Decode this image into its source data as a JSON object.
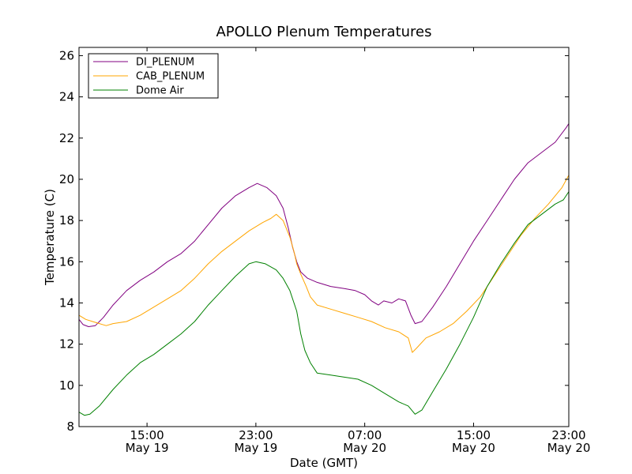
{
  "chart_data": {
    "type": "line",
    "title": "APOLLO Plenum Temperatures",
    "xlabel": "Date (GMT)",
    "ylabel": "Temperature (C)",
    "xlim": [
      10.0,
      46.0
    ],
    "ylim": [
      8,
      26.4
    ],
    "x_unit": "hours since 00:00 May 19 (GMT)",
    "yticks": [
      8,
      10,
      12,
      14,
      16,
      18,
      20,
      22,
      24,
      26
    ],
    "xticks": [
      {
        "x": 15,
        "time": "15:00",
        "date": "May 19"
      },
      {
        "x": 23,
        "time": "23:00",
        "date": "May 19"
      },
      {
        "x": 31,
        "time": "07:00",
        "date": "May 20"
      },
      {
        "x": 39,
        "time": "15:00",
        "date": "May 20"
      },
      {
        "x": 47,
        "time": "23:00",
        "date": "May 20"
      }
    ],
    "legend_position": "top-left",
    "series": [
      {
        "name": "DI_PLENUM",
        "color": "#800080",
        "points": [
          [
            10.0,
            13.2
          ],
          [
            10.3,
            12.95
          ],
          [
            10.7,
            12.85
          ],
          [
            11.2,
            12.9
          ],
          [
            11.8,
            13.3
          ],
          [
            12.5,
            13.9
          ],
          [
            13.5,
            14.6
          ],
          [
            14.5,
            15.1
          ],
          [
            15.5,
            15.5
          ],
          [
            16.5,
            16.0
          ],
          [
            17.5,
            16.4
          ],
          [
            18.5,
            17.0
          ],
          [
            19.5,
            17.8
          ],
          [
            20.5,
            18.6
          ],
          [
            21.5,
            19.2
          ],
          [
            22.5,
            19.6
          ],
          [
            23.1,
            19.8
          ],
          [
            23.8,
            19.6
          ],
          [
            24.5,
            19.2
          ],
          [
            25.0,
            18.6
          ],
          [
            25.4,
            17.6
          ],
          [
            25.7,
            16.7
          ],
          [
            26.0,
            16.0
          ],
          [
            26.3,
            15.5
          ],
          [
            26.8,
            15.2
          ],
          [
            27.5,
            15.0
          ],
          [
            28.5,
            14.8
          ],
          [
            29.5,
            14.7
          ],
          [
            30.3,
            14.6
          ],
          [
            31.0,
            14.4
          ],
          [
            31.5,
            14.1
          ],
          [
            32.0,
            13.9
          ],
          [
            32.4,
            14.1
          ],
          [
            33.0,
            14.0
          ],
          [
            33.5,
            14.2
          ],
          [
            34.0,
            14.1
          ],
          [
            34.4,
            13.4
          ],
          [
            34.7,
            13.0
          ],
          [
            35.2,
            13.1
          ],
          [
            36.0,
            13.8
          ],
          [
            37.0,
            14.8
          ],
          [
            38.0,
            15.9
          ],
          [
            39.0,
            17.0
          ],
          [
            40.0,
            18.0
          ],
          [
            41.0,
            19.0
          ],
          [
            42.0,
            20.0
          ],
          [
            43.0,
            20.8
          ],
          [
            44.0,
            21.3
          ],
          [
            45.0,
            21.8
          ],
          [
            45.8,
            22.5
          ],
          [
            46.0,
            22.7
          ]
        ]
      },
      {
        "name": "CAB_PLENUM",
        "color": "#FFA500",
        "points": [
          [
            10.0,
            13.4
          ],
          [
            10.5,
            13.2
          ],
          [
            11.0,
            13.1
          ],
          [
            11.5,
            13.0
          ],
          [
            12.0,
            12.9
          ],
          [
            12.5,
            13.0
          ],
          [
            13.5,
            13.1
          ],
          [
            14.5,
            13.4
          ],
          [
            15.5,
            13.8
          ],
          [
            16.5,
            14.2
          ],
          [
            17.5,
            14.6
          ],
          [
            18.5,
            15.2
          ],
          [
            19.5,
            15.9
          ],
          [
            20.5,
            16.5
          ],
          [
            21.5,
            17.0
          ],
          [
            22.5,
            17.5
          ],
          [
            23.5,
            17.9
          ],
          [
            24.1,
            18.1
          ],
          [
            24.5,
            18.3
          ],
          [
            25.0,
            18.0
          ],
          [
            25.5,
            17.2
          ],
          [
            25.8,
            16.5
          ],
          [
            26.0,
            15.9
          ],
          [
            26.3,
            15.4
          ],
          [
            26.7,
            14.8
          ],
          [
            27.0,
            14.3
          ],
          [
            27.5,
            13.9
          ],
          [
            28.5,
            13.7
          ],
          [
            29.5,
            13.5
          ],
          [
            30.5,
            13.3
          ],
          [
            31.5,
            13.1
          ],
          [
            32.5,
            12.8
          ],
          [
            33.5,
            12.6
          ],
          [
            34.2,
            12.3
          ],
          [
            34.5,
            11.6
          ],
          [
            34.8,
            11.8
          ],
          [
            35.5,
            12.3
          ],
          [
            36.5,
            12.6
          ],
          [
            37.5,
            13.0
          ],
          [
            38.5,
            13.6
          ],
          [
            39.5,
            14.3
          ],
          [
            40.5,
            15.3
          ],
          [
            41.5,
            16.3
          ],
          [
            42.5,
            17.3
          ],
          [
            43.5,
            18.1
          ],
          [
            44.5,
            18.8
          ],
          [
            45.5,
            19.6
          ],
          [
            46.0,
            20.2
          ]
        ]
      },
      {
        "name": "Dome Air",
        "color": "#008000",
        "points": [
          [
            10.0,
            8.7
          ],
          [
            10.4,
            8.55
          ],
          [
            10.8,
            8.6
          ],
          [
            11.5,
            9.0
          ],
          [
            12.5,
            9.8
          ],
          [
            13.5,
            10.5
          ],
          [
            14.5,
            11.1
          ],
          [
            15.5,
            11.5
          ],
          [
            16.5,
            12.0
          ],
          [
            17.5,
            12.5
          ],
          [
            18.5,
            13.1
          ],
          [
            19.5,
            13.9
          ],
          [
            20.5,
            14.6
          ],
          [
            21.5,
            15.3
          ],
          [
            22.5,
            15.9
          ],
          [
            23.0,
            16.0
          ],
          [
            23.7,
            15.9
          ],
          [
            24.5,
            15.6
          ],
          [
            25.0,
            15.2
          ],
          [
            25.5,
            14.6
          ],
          [
            26.0,
            13.6
          ],
          [
            26.3,
            12.5
          ],
          [
            26.6,
            11.7
          ],
          [
            27.0,
            11.1
          ],
          [
            27.5,
            10.6
          ],
          [
            28.5,
            10.5
          ],
          [
            29.5,
            10.4
          ],
          [
            30.5,
            10.3
          ],
          [
            31.5,
            10.0
          ],
          [
            32.5,
            9.6
          ],
          [
            33.5,
            9.2
          ],
          [
            34.2,
            9.0
          ],
          [
            34.7,
            8.6
          ],
          [
            35.2,
            8.8
          ],
          [
            36.0,
            9.7
          ],
          [
            37.0,
            10.8
          ],
          [
            38.0,
            12.0
          ],
          [
            39.0,
            13.3
          ],
          [
            40.0,
            14.8
          ],
          [
            41.0,
            15.9
          ],
          [
            42.0,
            16.9
          ],
          [
            43.0,
            17.8
          ],
          [
            44.0,
            18.3
          ],
          [
            45.0,
            18.8
          ],
          [
            45.6,
            19.0
          ],
          [
            46.0,
            19.4
          ]
        ]
      }
    ]
  }
}
